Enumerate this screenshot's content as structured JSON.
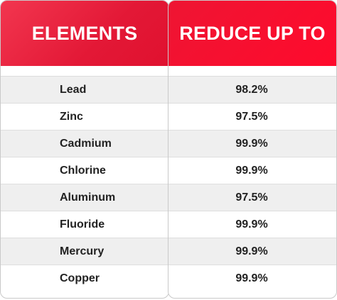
{
  "headers": {
    "elements": "ELEMENTS",
    "reduce": "REDUCE UP TO"
  },
  "rows": [
    {
      "element": "Lead",
      "value": "98.2%"
    },
    {
      "element": "Zinc",
      "value": "97.5%"
    },
    {
      "element": "Cadmium",
      "value": "99.9%"
    },
    {
      "element": "Chlorine",
      "value": "99.9%"
    },
    {
      "element": "Aluminum",
      "value": "97.5%"
    },
    {
      "element": "Fluoride",
      "value": "99.9%"
    },
    {
      "element": "Mercury",
      "value": "99.9%"
    },
    {
      "element": "Copper",
      "value": "99.9%"
    }
  ],
  "colors": {
    "header_red": "#ff0a2c",
    "row_shade": "#efefef",
    "border": "#c9c9c9"
  }
}
